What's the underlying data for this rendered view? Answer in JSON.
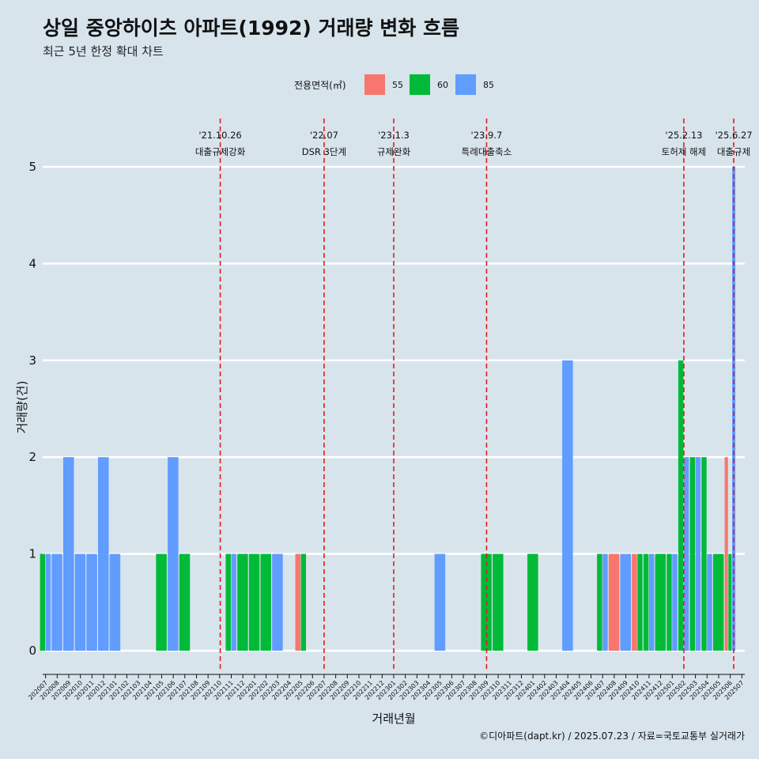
{
  "chart_data": {
    "type": "bar",
    "title": "상일 중앙하이츠 아파트(1992) 거래량 변화 흐름",
    "subtitle": "최근 5년 한정 확대 차트",
    "xlabel": "거래년월",
    "ylabel": "거래량(건)",
    "ylim": [
      0,
      5
    ],
    "yticks": [
      "0",
      "1",
      "2",
      "3",
      "4",
      "5"
    ],
    "grid": true,
    "legend": {
      "title": "전용면적(㎡)",
      "position": "top",
      "entries": [
        {
          "label": "55",
          "color": "#F8766D"
        },
        {
          "label": "60",
          "color": "#00BA38"
        },
        {
          "label": "85",
          "color": "#619CFF"
        }
      ]
    },
    "categories": [
      "202007",
      "202008",
      "202009",
      "202010",
      "202011",
      "202012",
      "202101",
      "202102",
      "202103",
      "202104",
      "202105",
      "202106",
      "202107",
      "202108",
      "202109",
      "202110",
      "202111",
      "202112",
      "202201",
      "202202",
      "202203",
      "202204",
      "202205",
      "202206",
      "202207",
      "202208",
      "202209",
      "202210",
      "202211",
      "202212",
      "202301",
      "202302",
      "202303",
      "202304",
      "202305",
      "202306",
      "202307",
      "202308",
      "202309",
      "202310",
      "202311",
      "202312",
      "202401",
      "202402",
      "202403",
      "202404",
      "202405",
      "202406",
      "202407",
      "202408",
      "202409",
      "202410",
      "202411",
      "202412",
      "202501",
      "202502",
      "202503",
      "202504",
      "202505",
      "202506",
      "202507"
    ],
    "bars": [
      {
        "x": "202007",
        "s55": 0,
        "s60": 1,
        "s85": 1
      },
      {
        "x": "202008",
        "s55": 0,
        "s60": 0,
        "s85": 1
      },
      {
        "x": "202009",
        "s55": 0,
        "s60": 0,
        "s85": 2
      },
      {
        "x": "202010",
        "s55": 0,
        "s60": 0,
        "s85": 1
      },
      {
        "x": "202011",
        "s55": 0,
        "s60": 0,
        "s85": 1
      },
      {
        "x": "202012",
        "s55": 0,
        "s60": 0,
        "s85": 2
      },
      {
        "x": "202101",
        "s55": 0,
        "s60": 0,
        "s85": 1
      },
      {
        "x": "202105",
        "s55": 0,
        "s60": 1,
        "s85": 0
      },
      {
        "x": "202106",
        "s55": 0,
        "s60": 0,
        "s85": 2
      },
      {
        "x": "202107",
        "s55": 0,
        "s60": 1,
        "s85": 0
      },
      {
        "x": "202111",
        "s55": 0,
        "s60": 1,
        "s85": 1
      },
      {
        "x": "202112",
        "s55": 0,
        "s60": 1,
        "s85": 0
      },
      {
        "x": "202201",
        "s55": 0,
        "s60": 1,
        "s85": 0
      },
      {
        "x": "202202",
        "s55": 0,
        "s60": 1,
        "s85": 0
      },
      {
        "x": "202203",
        "s55": 0,
        "s60": 0,
        "s85": 1
      },
      {
        "x": "202205",
        "s55": 1,
        "s60": 1,
        "s85": 0
      },
      {
        "x": "202305",
        "s55": 0,
        "s60": 0,
        "s85": 1
      },
      {
        "x": "202309",
        "s55": 0,
        "s60": 1,
        "s85": 0
      },
      {
        "x": "202310",
        "s55": 0,
        "s60": 1,
        "s85": 0
      },
      {
        "x": "202401",
        "s55": 0,
        "s60": 1,
        "s85": 0
      },
      {
        "x": "202404",
        "s55": 0,
        "s60": 0,
        "s85": 3
      },
      {
        "x": "202407",
        "s55": 0,
        "s60": 1,
        "s85": 1
      },
      {
        "x": "202408",
        "s55": 1,
        "s60": 0,
        "s85": 0
      },
      {
        "x": "202409",
        "s55": 0,
        "s60": 0,
        "s85": 1
      },
      {
        "x": "202410",
        "s55": 1,
        "s60": 1,
        "s85": 0
      },
      {
        "x": "202411",
        "s55": 0,
        "s60": 1,
        "s85": 1
      },
      {
        "x": "202412",
        "s55": 0,
        "s60": 1,
        "s85": 0
      },
      {
        "x": "202501",
        "s55": 0,
        "s60": 1,
        "s85": 1
      },
      {
        "x": "202502",
        "s55": 0,
        "s60": 3,
        "s85": 2
      },
      {
        "x": "202503",
        "s55": 0,
        "s60": 2,
        "s85": 2
      },
      {
        "x": "202504",
        "s55": 0,
        "s60": 2,
        "s85": 1
      },
      {
        "x": "202505",
        "s55": 0,
        "s60": 1,
        "s85": 0
      },
      {
        "x": "202506",
        "s55": 2,
        "s60": 1,
        "s85": 5
      }
    ],
    "annotations": [
      {
        "x": "202110",
        "offset": 0.05,
        "date": "'21.10.26",
        "label": "대출규제강화"
      },
      {
        "x": "202207",
        "offset": 0.0,
        "date": "'22.07",
        "label": "DSR 3단계"
      },
      {
        "x": "202301",
        "offset": 0.0,
        "date": "'23.1.3",
        "label": "규제완화"
      },
      {
        "x": "202309",
        "offset": 0.0,
        "date": "'23.9.7",
        "label": "특례대출축소"
      },
      {
        "x": "202502",
        "offset": 0.0,
        "date": "'25.2.13",
        "label": "토허제 해제"
      },
      {
        "x": "202506",
        "offset": 0.3,
        "date": "'25.6.27",
        "label": "대출규제"
      }
    ],
    "caption": "©디아파트(dapt.kr) / 2025.07.23 / 자료=국토교통부 실거래가"
  }
}
